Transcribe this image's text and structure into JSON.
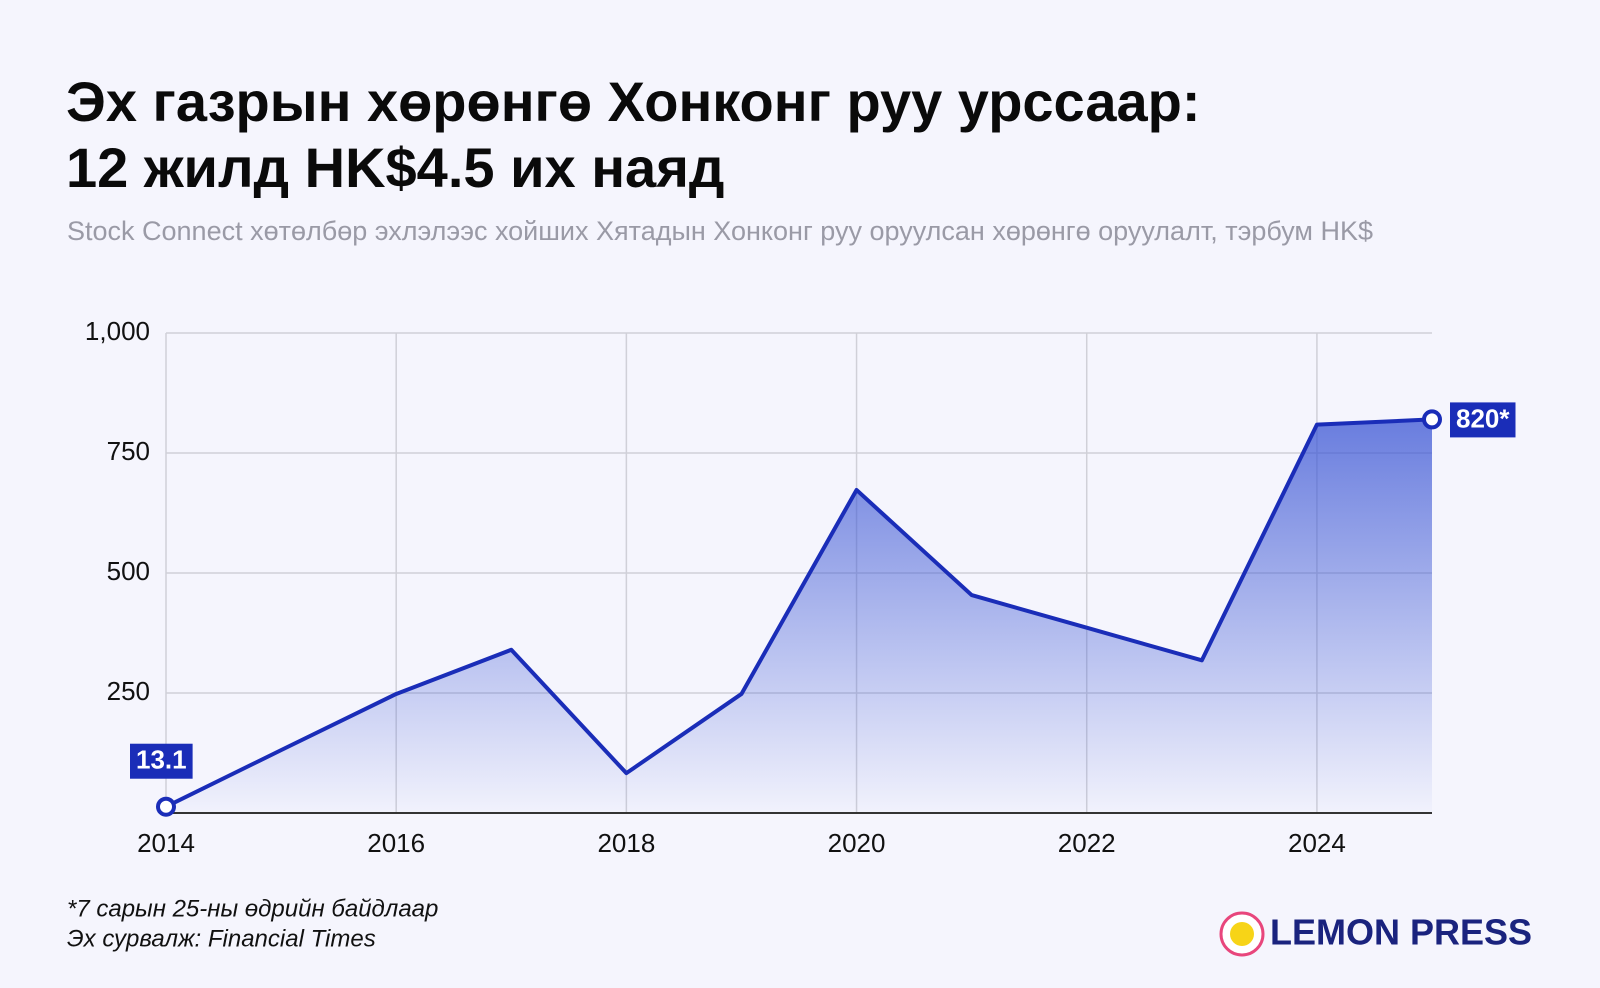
{
  "chart_data": {
    "type": "area",
    "title": [
      "Эх газрын хөрөнгө Хонконг руу урссаар:",
      "12 жилд HK$4.5 их наяд"
    ],
    "subtitle": "Stock Connect хөтөлбөр эхлэлээс хойших Хятадын Хонконг руу оруулсан хөрөнгө оруулалт, тэрбум HK$",
    "x": [
      2014,
      2015,
      2016,
      2017,
      2018,
      2019,
      2020,
      2021,
      2022,
      2023,
      2024,
      2025
    ],
    "series": [
      {
        "name": "Хөрөнгө оруулалт",
        "color": "#1a2db8",
        "values": [
          13.1,
          131,
          248,
          340,
          83,
          248,
          673,
          454,
          386,
          318,
          809,
          820
        ],
        "value_labels": [
          "13.1",
          null,
          null,
          null,
          null,
          null,
          null,
          null,
          null,
          null,
          null,
          "820*"
        ]
      }
    ],
    "xlim": [
      2014,
      2025
    ],
    "xticks": [
      2014,
      2016,
      2018,
      2020,
      2022,
      2024
    ],
    "ylim": [
      0,
      1000
    ],
    "yticks": [
      250,
      500,
      750,
      {
        "value": 1000,
        "label": "1,000"
      }
    ],
    "grid": true,
    "notes": [
      "*7 сарын 25-ны өдрийн байдлаар",
      "Эх сурвалж: Financial Times"
    ],
    "logo": "LEMON PRESS"
  }
}
